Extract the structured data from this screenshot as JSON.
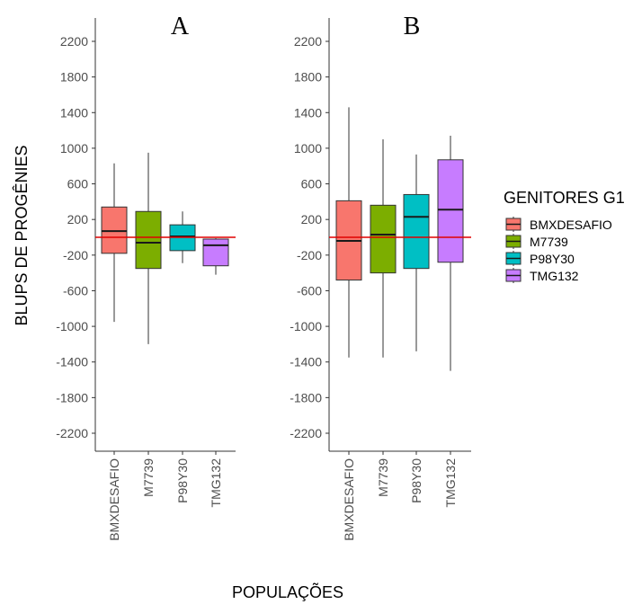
{
  "colors": {
    "BMXDESAFIO": "#F8766D",
    "M7739": "#7CAE00",
    "P98Y30": "#00BFC4",
    "TMG132": "#C77CFF",
    "reference_line": "#E00000"
  },
  "chart_data": {
    "type": "boxplot",
    "ylabel": "BLUPS DE PROGÊNIES",
    "xlabel": "POPULAÇÕES",
    "legend": {
      "title": "GENITORES G1",
      "position": "right",
      "entries": [
        "BMXDESAFIO",
        "M7739",
        "P98Y30",
        "TMG132"
      ]
    },
    "yticks": [
      2200,
      1800,
      1400,
      1000,
      600,
      200,
      -200,
      -600,
      -1000,
      -1400,
      -1800,
      -2200
    ],
    "ylim": [
      -2400,
      2400
    ],
    "reference_line_y": 0,
    "categories": [
      "BMXDESAFIO",
      "M7739",
      "P98Y30",
      "TMG132"
    ],
    "panels": [
      {
        "title": "A",
        "boxes": [
          {
            "category": "BMXDESAFIO",
            "min": -950,
            "q1": -180,
            "median": 70,
            "q3": 340,
            "max": 830
          },
          {
            "category": "M7739",
            "min": -1200,
            "q1": -350,
            "median": -60,
            "q3": 290,
            "max": 950
          },
          {
            "category": "P98Y30",
            "min": -290,
            "q1": -150,
            "median": 10,
            "q3": 140,
            "max": 290
          },
          {
            "category": "TMG132",
            "min": -420,
            "q1": -320,
            "median": -90,
            "q3": -20,
            "max": -10
          }
        ]
      },
      {
        "title": "B",
        "boxes": [
          {
            "category": "BMXDESAFIO",
            "min": -1350,
            "q1": -480,
            "median": -40,
            "q3": 410,
            "max": 1460
          },
          {
            "category": "M7739",
            "min": -1350,
            "q1": -400,
            "median": 30,
            "q3": 360,
            "max": 1100
          },
          {
            "category": "P98Y30",
            "min": -1280,
            "q1": -350,
            "median": 230,
            "q3": 480,
            "max": 930
          },
          {
            "category": "TMG132",
            "min": -1500,
            "q1": -280,
            "median": 310,
            "q3": 870,
            "max": 1140
          }
        ]
      }
    ]
  }
}
